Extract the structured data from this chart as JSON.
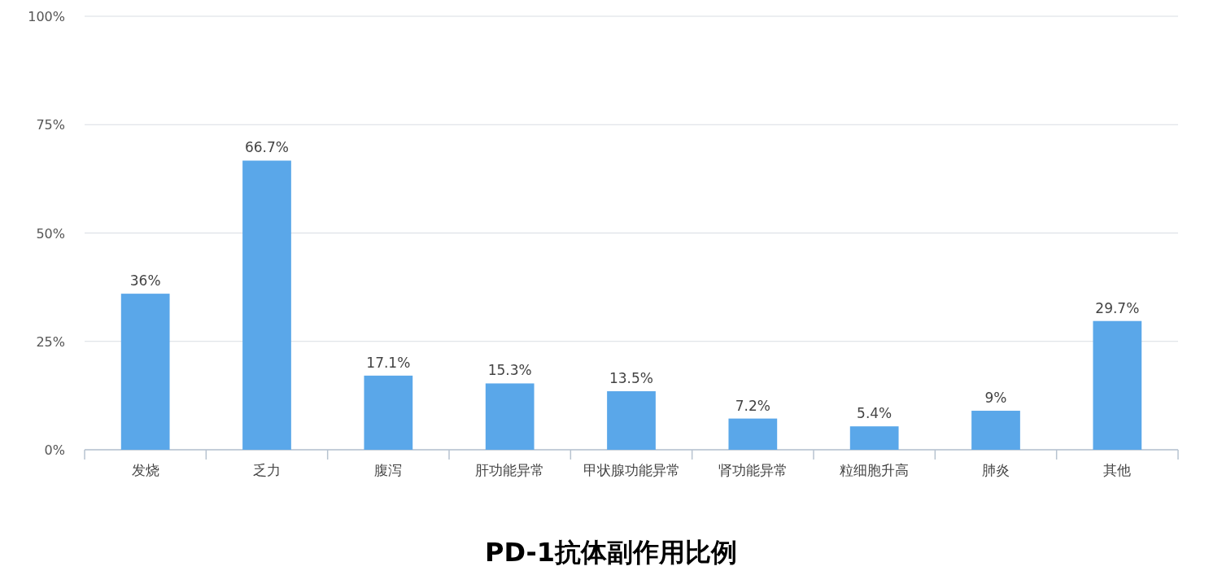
{
  "chart_data": {
    "type": "bar",
    "title": "PD-1抗体副作用比例",
    "categories": [
      "发烧",
      "乏力",
      "腹泻",
      "肝功能异常",
      "甲状腺功能异常",
      "肾功能异常",
      "粒细胞升高",
      "肺炎",
      "其他"
    ],
    "values": [
      36,
      66.7,
      17.1,
      15.3,
      13.5,
      7.2,
      5.4,
      9,
      29.7
    ],
    "value_labels": [
      "36%",
      "66.7%",
      "17.1%",
      "15.3%",
      "13.5%",
      "7.2%",
      "5.4%",
      "9%",
      "29.7%"
    ],
    "color": "#5aa7e9",
    "ylim": [
      0,
      100
    ],
    "yticks": [
      {
        "value": 0,
        "label": "0%"
      },
      {
        "value": 25,
        "label": "25%"
      },
      {
        "value": 50,
        "label": "50%"
      },
      {
        "value": 75,
        "label": "75%"
      },
      {
        "value": 100,
        "label": "100%"
      }
    ],
    "grid": "y"
  }
}
